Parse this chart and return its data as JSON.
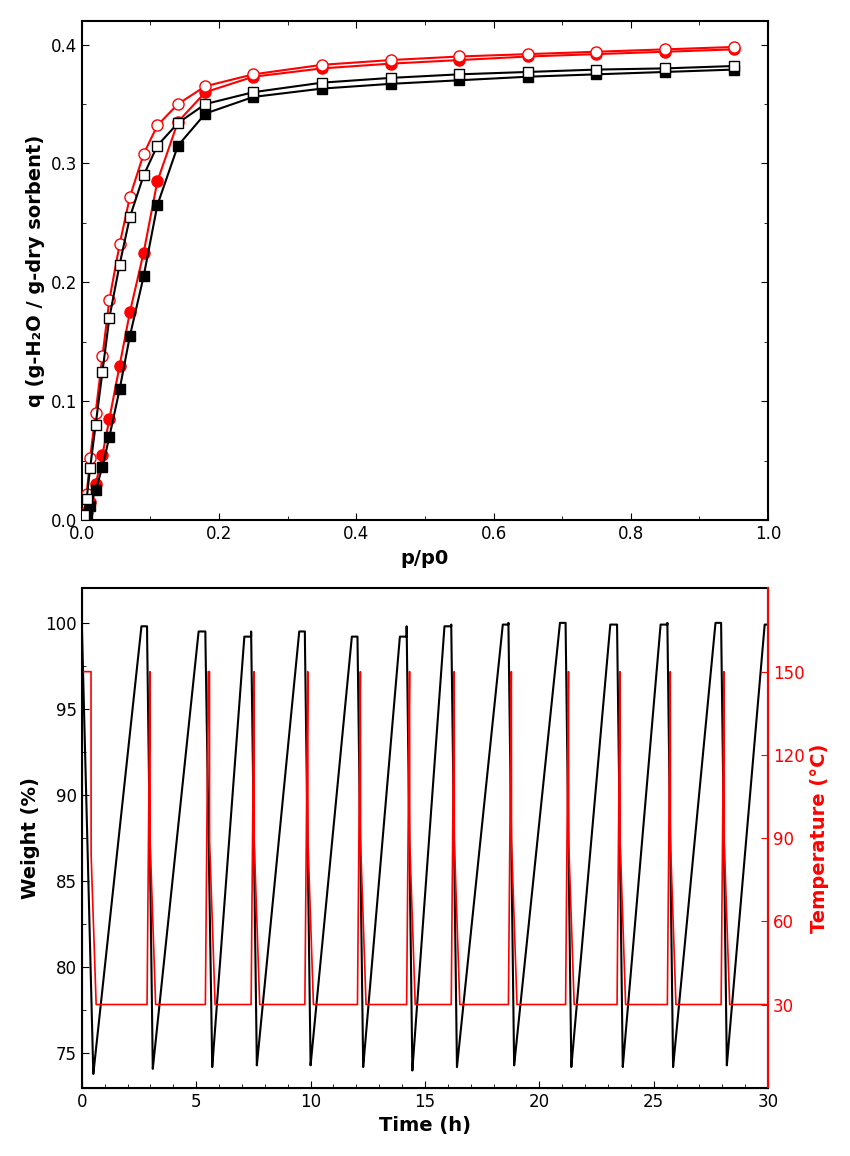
{
  "top_plot": {
    "xlabel": "p/p0",
    "ylabel": "q (g-H₂O / g-dry sorbent)",
    "xlim": [
      0.0,
      1.0
    ],
    "ylim": [
      0.0,
      0.42
    ],
    "yticks": [
      0.0,
      0.1,
      0.2,
      0.3,
      0.4
    ],
    "xticks": [
      0.0,
      0.2,
      0.4,
      0.6,
      0.8,
      1.0
    ],
    "red_ads_x": [
      0.003,
      0.007,
      0.012,
      0.02,
      0.03,
      0.04,
      0.055,
      0.07,
      0.09,
      0.11,
      0.14,
      0.18,
      0.25,
      0.35,
      0.45,
      0.55,
      0.65,
      0.75,
      0.85,
      0.95
    ],
    "red_ads_y": [
      0.003,
      0.007,
      0.015,
      0.03,
      0.055,
      0.085,
      0.13,
      0.175,
      0.225,
      0.285,
      0.335,
      0.36,
      0.373,
      0.38,
      0.384,
      0.387,
      0.39,
      0.392,
      0.394,
      0.396
    ],
    "red_des_x": [
      0.95,
      0.85,
      0.75,
      0.65,
      0.55,
      0.45,
      0.35,
      0.25,
      0.18,
      0.14,
      0.11,
      0.09,
      0.07,
      0.055,
      0.04,
      0.03,
      0.02,
      0.012,
      0.007,
      0.003
    ],
    "red_des_y": [
      0.398,
      0.396,
      0.394,
      0.392,
      0.39,
      0.387,
      0.383,
      0.375,
      0.365,
      0.35,
      0.332,
      0.308,
      0.272,
      0.232,
      0.185,
      0.138,
      0.09,
      0.052,
      0.022,
      0.006
    ],
    "black_ads_x": [
      0.003,
      0.007,
      0.012,
      0.02,
      0.03,
      0.04,
      0.055,
      0.07,
      0.09,
      0.11,
      0.14,
      0.18,
      0.25,
      0.35,
      0.45,
      0.55,
      0.65,
      0.75,
      0.85,
      0.95
    ],
    "black_ads_y": [
      0.002,
      0.005,
      0.012,
      0.025,
      0.045,
      0.07,
      0.11,
      0.155,
      0.205,
      0.265,
      0.315,
      0.342,
      0.356,
      0.363,
      0.367,
      0.37,
      0.373,
      0.375,
      0.377,
      0.379
    ],
    "black_des_x": [
      0.95,
      0.85,
      0.75,
      0.65,
      0.55,
      0.45,
      0.35,
      0.25,
      0.18,
      0.14,
      0.11,
      0.09,
      0.07,
      0.055,
      0.04,
      0.03,
      0.02,
      0.012,
      0.007,
      0.003
    ],
    "black_des_y": [
      0.382,
      0.38,
      0.379,
      0.377,
      0.375,
      0.372,
      0.368,
      0.36,
      0.35,
      0.334,
      0.315,
      0.29,
      0.255,
      0.215,
      0.17,
      0.125,
      0.08,
      0.044,
      0.018,
      0.004
    ]
  },
  "bottom_plot": {
    "xlabel": "Time (h)",
    "ylabel_left": "Weight (%)",
    "ylabel_right": "Temperature (°C)",
    "xlim": [
      0,
      30
    ],
    "ylim_left": [
      73,
      102
    ],
    "ylim_right": [
      0,
      180
    ],
    "yticks_left": [
      75,
      80,
      85,
      90,
      95,
      100
    ],
    "yticks_right": [
      30,
      60,
      90,
      120,
      150
    ],
    "xticks": [
      0,
      5,
      10,
      15,
      20,
      25,
      30
    ],
    "cycles": [
      [
        0.0,
        0.5,
        0.5,
        2.6,
        2.6,
        2.85
      ],
      [
        2.85,
        3.1,
        3.1,
        5.1,
        5.1,
        5.4
      ],
      [
        5.4,
        5.7,
        5.7,
        7.1,
        7.1,
        7.4
      ],
      [
        7.4,
        7.65,
        7.65,
        9.5,
        9.5,
        9.75
      ],
      [
        9.75,
        10.0,
        10.0,
        11.8,
        11.8,
        12.05
      ],
      [
        12.05,
        12.3,
        12.3,
        13.9,
        13.9,
        14.2
      ],
      [
        14.2,
        14.45,
        14.45,
        15.85,
        15.85,
        16.15
      ],
      [
        16.15,
        16.4,
        16.4,
        18.4,
        18.4,
        18.65
      ],
      [
        18.65,
        18.9,
        18.9,
        20.9,
        20.9,
        21.15
      ],
      [
        21.15,
        21.4,
        21.4,
        23.1,
        23.1,
        23.4
      ],
      [
        23.4,
        23.65,
        23.65,
        25.3,
        25.3,
        25.6
      ],
      [
        25.6,
        25.85,
        25.85,
        27.7,
        27.7,
        27.95
      ],
      [
        27.95,
        28.2,
        28.2,
        29.85,
        29.85,
        30.0
      ]
    ],
    "w_lows": [
      73.8,
      74.1,
      74.2,
      74.3,
      74.3,
      74.2,
      74.0,
      74.2,
      74.3,
      74.2,
      74.2,
      74.2,
      74.3
    ],
    "w_highs": [
      99.8,
      99.5,
      99.2,
      99.5,
      99.2,
      99.2,
      99.8,
      99.9,
      100.0,
      99.9,
      99.9,
      100.0,
      99.9
    ]
  }
}
